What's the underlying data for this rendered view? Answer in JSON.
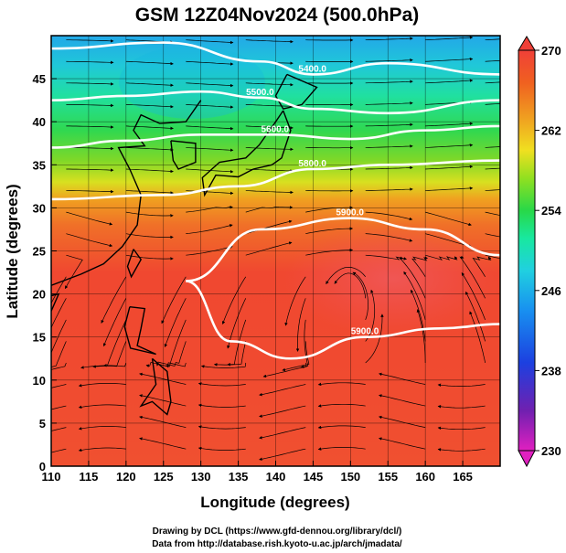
{
  "title": "GSM 12Z04Nov2024 (500.0hPa)",
  "credits": [
    "Drawing by DCL (https://www.gfd-dennou.org/library/dcl/)",
    "Data from http://database.rish.kyoto-u.ac.jp/arch/jmadata/"
  ],
  "chart_data": {
    "type": "heatmap",
    "title": "GSM 12Z04Nov2024 (500.0hPa)",
    "xlabel": "Longitude (degrees)",
    "ylabel": "Latitude  (degrees)",
    "xlim": [
      110,
      170
    ],
    "ylim": [
      0,
      50
    ],
    "x_ticks": [
      110,
      115,
      120,
      125,
      130,
      135,
      140,
      145,
      150,
      155,
      160,
      165
    ],
    "y_ticks": [
      0,
      5,
      10,
      15,
      20,
      25,
      30,
      35,
      40,
      45
    ],
    "grid": true,
    "colorbar": {
      "min": 230,
      "max": 270,
      "labels": [
        270,
        262,
        254,
        246,
        238,
        230
      ],
      "colors": [
        "#e020c0",
        "#7020b0",
        "#1c40e0",
        "#1890f0",
        "#20d0e0",
        "#18e8a0",
        "#28d848",
        "#90e020",
        "#f0e020",
        "#f0a020",
        "#f06020",
        "#f04038"
      ],
      "position": "right"
    },
    "contours": [
      {
        "label": "5400.0",
        "lat_at_lon": [
          [
            110,
            48.5
          ],
          [
            125,
            49.2
          ],
          [
            138,
            47.0
          ],
          [
            145,
            45.5
          ],
          [
            155,
            46.8
          ],
          [
            170,
            45.5
          ]
        ]
      },
      {
        "label": "5500.0",
        "lat_at_lon": [
          [
            110,
            42.5
          ],
          [
            120,
            43.0
          ],
          [
            130,
            43.5
          ],
          [
            138,
            42.8
          ],
          [
            145,
            41.5
          ],
          [
            155,
            41.0
          ],
          [
            170,
            42.5
          ]
        ]
      },
      {
        "label": "5600.0",
        "lat_at_lon": [
          [
            110,
            37.0
          ],
          [
            120,
            37.8
          ],
          [
            130,
            38.5
          ],
          [
            140,
            38.5
          ],
          [
            150,
            38.0
          ],
          [
            160,
            39.0
          ],
          [
            170,
            39.5
          ]
        ]
      },
      {
        "label": "5800.0",
        "lat_at_lon": [
          [
            110,
            31.0
          ],
          [
            125,
            31.5
          ],
          [
            135,
            32.5
          ],
          [
            145,
            34.5
          ],
          [
            155,
            35.0
          ],
          [
            170,
            35.5
          ]
        ]
      },
      {
        "label": "5900.0",
        "lat_at_lon": [
          [
            128,
            21.5
          ],
          [
            138,
            27.5
          ],
          [
            150,
            28.8
          ],
          [
            160,
            27.5
          ],
          [
            170,
            24.5
          ]
        ]
      },
      {
        "label": "5900.0",
        "lat_at_lon": [
          [
            128,
            21.5
          ],
          [
            134,
            14.5
          ],
          [
            142,
            12.5
          ],
          [
            152,
            15.0
          ],
          [
            162,
            16.0
          ],
          [
            170,
            16.5
          ]
        ]
      }
    ],
    "wind": {
      "display": "streamlines"
    }
  }
}
